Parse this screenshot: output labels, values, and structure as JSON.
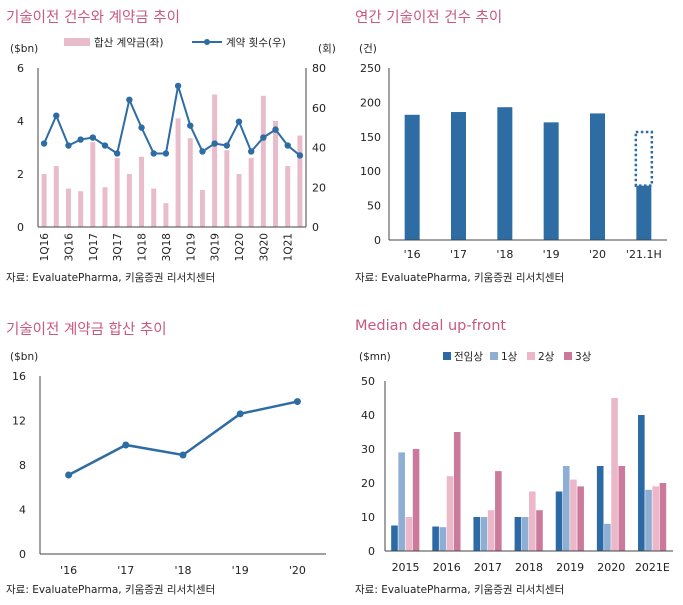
{
  "colors": {
    "title": "#c8587f",
    "bar_blue": "#2e6ca4",
    "bar_pink": "#e8bccb",
    "line_blue": "#2e6ca4",
    "s_clinical": "#2b6aa5",
    "s_p1": "#8eaed3",
    "s_p2": "#ebb7c9",
    "s_p3": "#cc7a9b",
    "axis": "#444444"
  },
  "panels": {
    "p1": {
      "title": "기술이전 건수와 계약금 추이",
      "source": "자료: EvaluatePharma, 키움증권 리서치센터"
    },
    "p2": {
      "title": "연간 기술이전 건수 추이",
      "source": "자료: EvaluatePharma, 키움증권 리서치센터"
    },
    "p3": {
      "title": "기술이전 계약금 합산 추이",
      "source": "자료: EvaluatePharma, 키움증권 리서치센터"
    },
    "p4": {
      "title": "Median deal up-front",
      "source": "자료: EvaluatePharma, 키움증권 리서치센터"
    }
  },
  "chart_data": [
    {
      "id": "p1",
      "type": "bar",
      "y_unit_left": "($bn)",
      "y_unit_right": "(회)",
      "ylim_left": [
        0,
        6
      ],
      "ylim_right": [
        0,
        80
      ],
      "yticks_left": [
        0,
        2,
        4,
        6
      ],
      "yticks_right": [
        0,
        20,
        40,
        60,
        80
      ],
      "x_tick_labels": [
        "1Q16",
        "3Q16",
        "1Q17",
        "3Q17",
        "1Q18",
        "3Q18",
        "1Q19",
        "3Q19",
        "1Q20",
        "3Q20",
        "1Q21"
      ],
      "categories": [
        "1Q16",
        "2Q16",
        "3Q16",
        "4Q16",
        "1Q17",
        "2Q17",
        "3Q17",
        "4Q17",
        "1Q18",
        "2Q18",
        "3Q18",
        "4Q18",
        "1Q19",
        "2Q19",
        "3Q19",
        "4Q19",
        "1Q20",
        "2Q20",
        "3Q20",
        "4Q20",
        "1Q21",
        "2Q21"
      ],
      "series": [
        {
          "name": "합산 계약금(좌)",
          "kind": "bar",
          "axis": "left",
          "values": [
            2.0,
            2.3,
            1.45,
            1.35,
            3.2,
            1.5,
            2.6,
            2.0,
            2.65,
            1.45,
            0.9,
            4.1,
            3.35,
            1.4,
            5.0,
            2.9,
            2.0,
            2.6,
            4.95,
            4.0,
            2.3,
            3.45
          ]
        },
        {
          "name": "계약 횟수(우)",
          "kind": "line",
          "axis": "right",
          "values": [
            42,
            56,
            41,
            44,
            45,
            41,
            37,
            64,
            50,
            37,
            37,
            71,
            51,
            38,
            42,
            41,
            53,
            38,
            45,
            49,
            41,
            36
          ]
        }
      ]
    },
    {
      "id": "p2",
      "type": "bar",
      "y_unit": "(건)",
      "ylim": [
        0,
        250
      ],
      "yticks": [
        0,
        50,
        100,
        150,
        200,
        250
      ],
      "categories": [
        "'16",
        "'17",
        "'18",
        "'19",
        "'20",
        "'21.1H"
      ],
      "values": [
        182,
        186,
        193,
        171,
        184,
        79
      ],
      "dashed_projection": {
        "category": "'21.1H",
        "from": 79,
        "to": 157
      }
    },
    {
      "id": "p3",
      "type": "line",
      "y_unit": "($bn)",
      "ylim": [
        0,
        16
      ],
      "yticks": [
        0,
        4,
        8,
        12,
        16
      ],
      "categories": [
        "'16",
        "'17",
        "'18",
        "'19",
        "'20"
      ],
      "values": [
        7.1,
        9.8,
        8.9,
        12.6,
        13.7
      ]
    },
    {
      "id": "p4",
      "type": "bar",
      "y_unit": "($mn)",
      "ylim": [
        0,
        50
      ],
      "yticks": [
        0,
        10,
        20,
        30,
        40,
        50
      ],
      "categories": [
        "2015",
        "2016",
        "2017",
        "2018",
        "2019",
        "2020",
        "2021E"
      ],
      "series": [
        {
          "name": "전임상",
          "values": [
            7.5,
            7.2,
            10.0,
            10.0,
            17.5,
            25.0,
            40.0
          ]
        },
        {
          "name": "1상",
          "values": [
            29.0,
            7.0,
            10.0,
            10.0,
            25.0,
            8.0,
            18.0
          ]
        },
        {
          "name": "2상",
          "values": [
            10.0,
            22.0,
            12.0,
            17.5,
            21.0,
            45.0,
            19.0
          ]
        },
        {
          "name": "3상",
          "values": [
            30.0,
            35.0,
            23.5,
            12.0,
            19.0,
            25.0,
            20.0
          ]
        }
      ]
    }
  ]
}
